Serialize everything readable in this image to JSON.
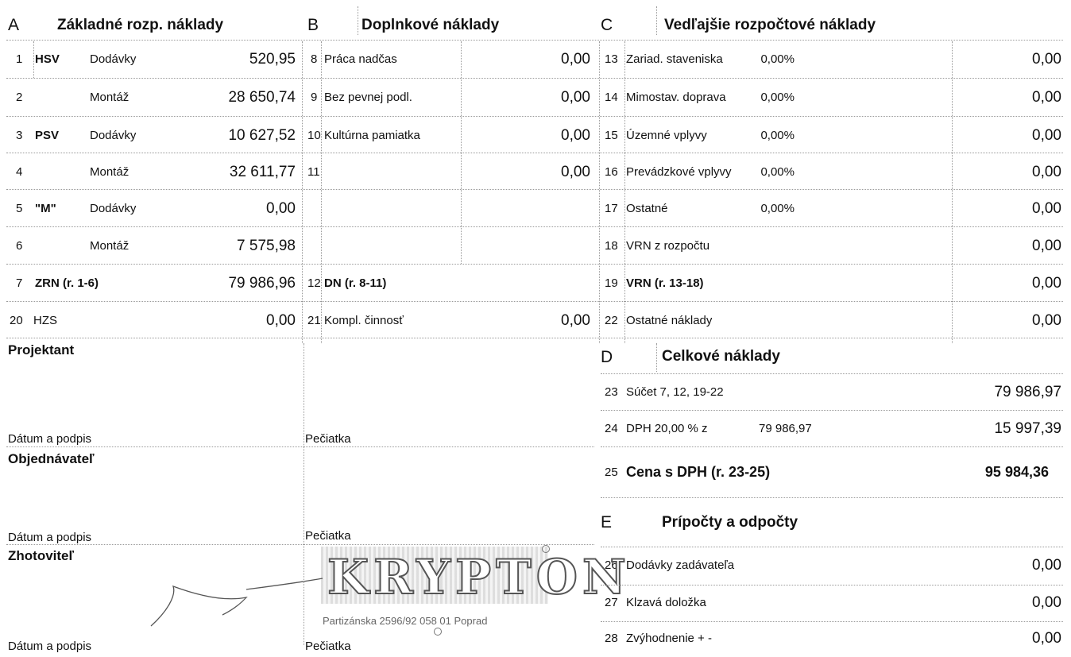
{
  "section_a": {
    "letter": "A",
    "title": "Základné rozp. náklady",
    "rows": [
      {
        "no": "1",
        "group": "HSV",
        "type": "Dodávky",
        "value": "520,95"
      },
      {
        "no": "2",
        "group": "",
        "type": "Montáž",
        "value": "28 650,74"
      },
      {
        "no": "3",
        "group": "PSV",
        "type": "Dodávky",
        "value": "10 627,52"
      },
      {
        "no": "4",
        "group": "",
        "type": "Montáž",
        "value": "32 611,77"
      },
      {
        "no": "5",
        "group": "\"M\"",
        "type": "Dodávky",
        "value": "0,00"
      },
      {
        "no": "6",
        "group": "",
        "type": "Montáž",
        "value": "7 575,98"
      },
      {
        "no": "7",
        "group": "ZRN (r. 1-6)",
        "type": "",
        "value": "79 986,96"
      },
      {
        "no": "20",
        "group": "HZS",
        "type": "",
        "value": "0,00"
      }
    ]
  },
  "section_b": {
    "letter": "B",
    "title": "Doplnkové náklady",
    "rows": [
      {
        "no": "8",
        "label": "Práca nadčas",
        "value": "0,00"
      },
      {
        "no": "9",
        "label": "Bez pevnej podl.",
        "value": "0,00"
      },
      {
        "no": "10",
        "label": "Kultúrna pamiatka",
        "value": "0,00"
      },
      {
        "no": "11",
        "label": "",
        "value": "0,00"
      },
      {
        "no": "12",
        "label": "DN (r. 8-11)",
        "value": ""
      },
      {
        "no": "21",
        "label": "Kompl. činnosť",
        "value": "0,00"
      }
    ]
  },
  "section_c": {
    "letter": "C",
    "title": "Vedľajšie rozpočtové náklady",
    "rows": [
      {
        "no": "13",
        "label": "Zariad. staveniska",
        "pct": "0,00%",
        "value": "0,00"
      },
      {
        "no": "14",
        "label": "Mimostav. doprava",
        "pct": "0,00%",
        "value": "0,00"
      },
      {
        "no": "15",
        "label": "Územné vplyvy",
        "pct": "0,00%",
        "value": "0,00"
      },
      {
        "no": "16",
        "label": "Prevádzkové vplyvy",
        "pct": "0,00%",
        "value": "0,00"
      },
      {
        "no": "17",
        "label": "Ostatné",
        "pct": "0,00%",
        "value": "0,00"
      },
      {
        "no": "18",
        "label": "VRN z rozpočtu",
        "pct": "",
        "value": "0,00"
      },
      {
        "no": "19",
        "label": "VRN (r. 13-18)",
        "pct": "",
        "value": "0,00"
      },
      {
        "no": "22",
        "label": "Ostatné náklady",
        "pct": "",
        "value": "0,00"
      }
    ]
  },
  "section_d": {
    "letter": "D",
    "title": "Celkové náklady",
    "rows": [
      {
        "no": "23",
        "label": "Súčet 7, 12, 19-22",
        "base": "",
        "value": "79 986,97"
      },
      {
        "no": "24",
        "label": "DPH 20,00 % z",
        "base": "79 986,97",
        "value": "15 997,39"
      },
      {
        "no": "25",
        "label": "Cena s DPH (r. 23-25)",
        "base": "",
        "value": "95 984,36"
      }
    ]
  },
  "section_e": {
    "letter": "E",
    "title": "Prípočty a odpočty",
    "rows": [
      {
        "no": "26",
        "label": "Dodávky zadávateľa",
        "value": "0,00"
      },
      {
        "no": "27",
        "label": "Klzavá doložka",
        "value": "0,00"
      },
      {
        "no": "28",
        "label": "Zvýhodnenie + -",
        "value": "0,00"
      }
    ]
  },
  "signatures": {
    "projektant": "Projektant",
    "objednavatel": "Objednávateľ",
    "zhotovitel": "Zhotoviteľ",
    "date_label": "Dátum a podpis",
    "stamp_label": "Pečiatka"
  },
  "stamp": {
    "name": "KRYPTON",
    "address": "Partizánska 2596/92 058 01 Poprad"
  }
}
